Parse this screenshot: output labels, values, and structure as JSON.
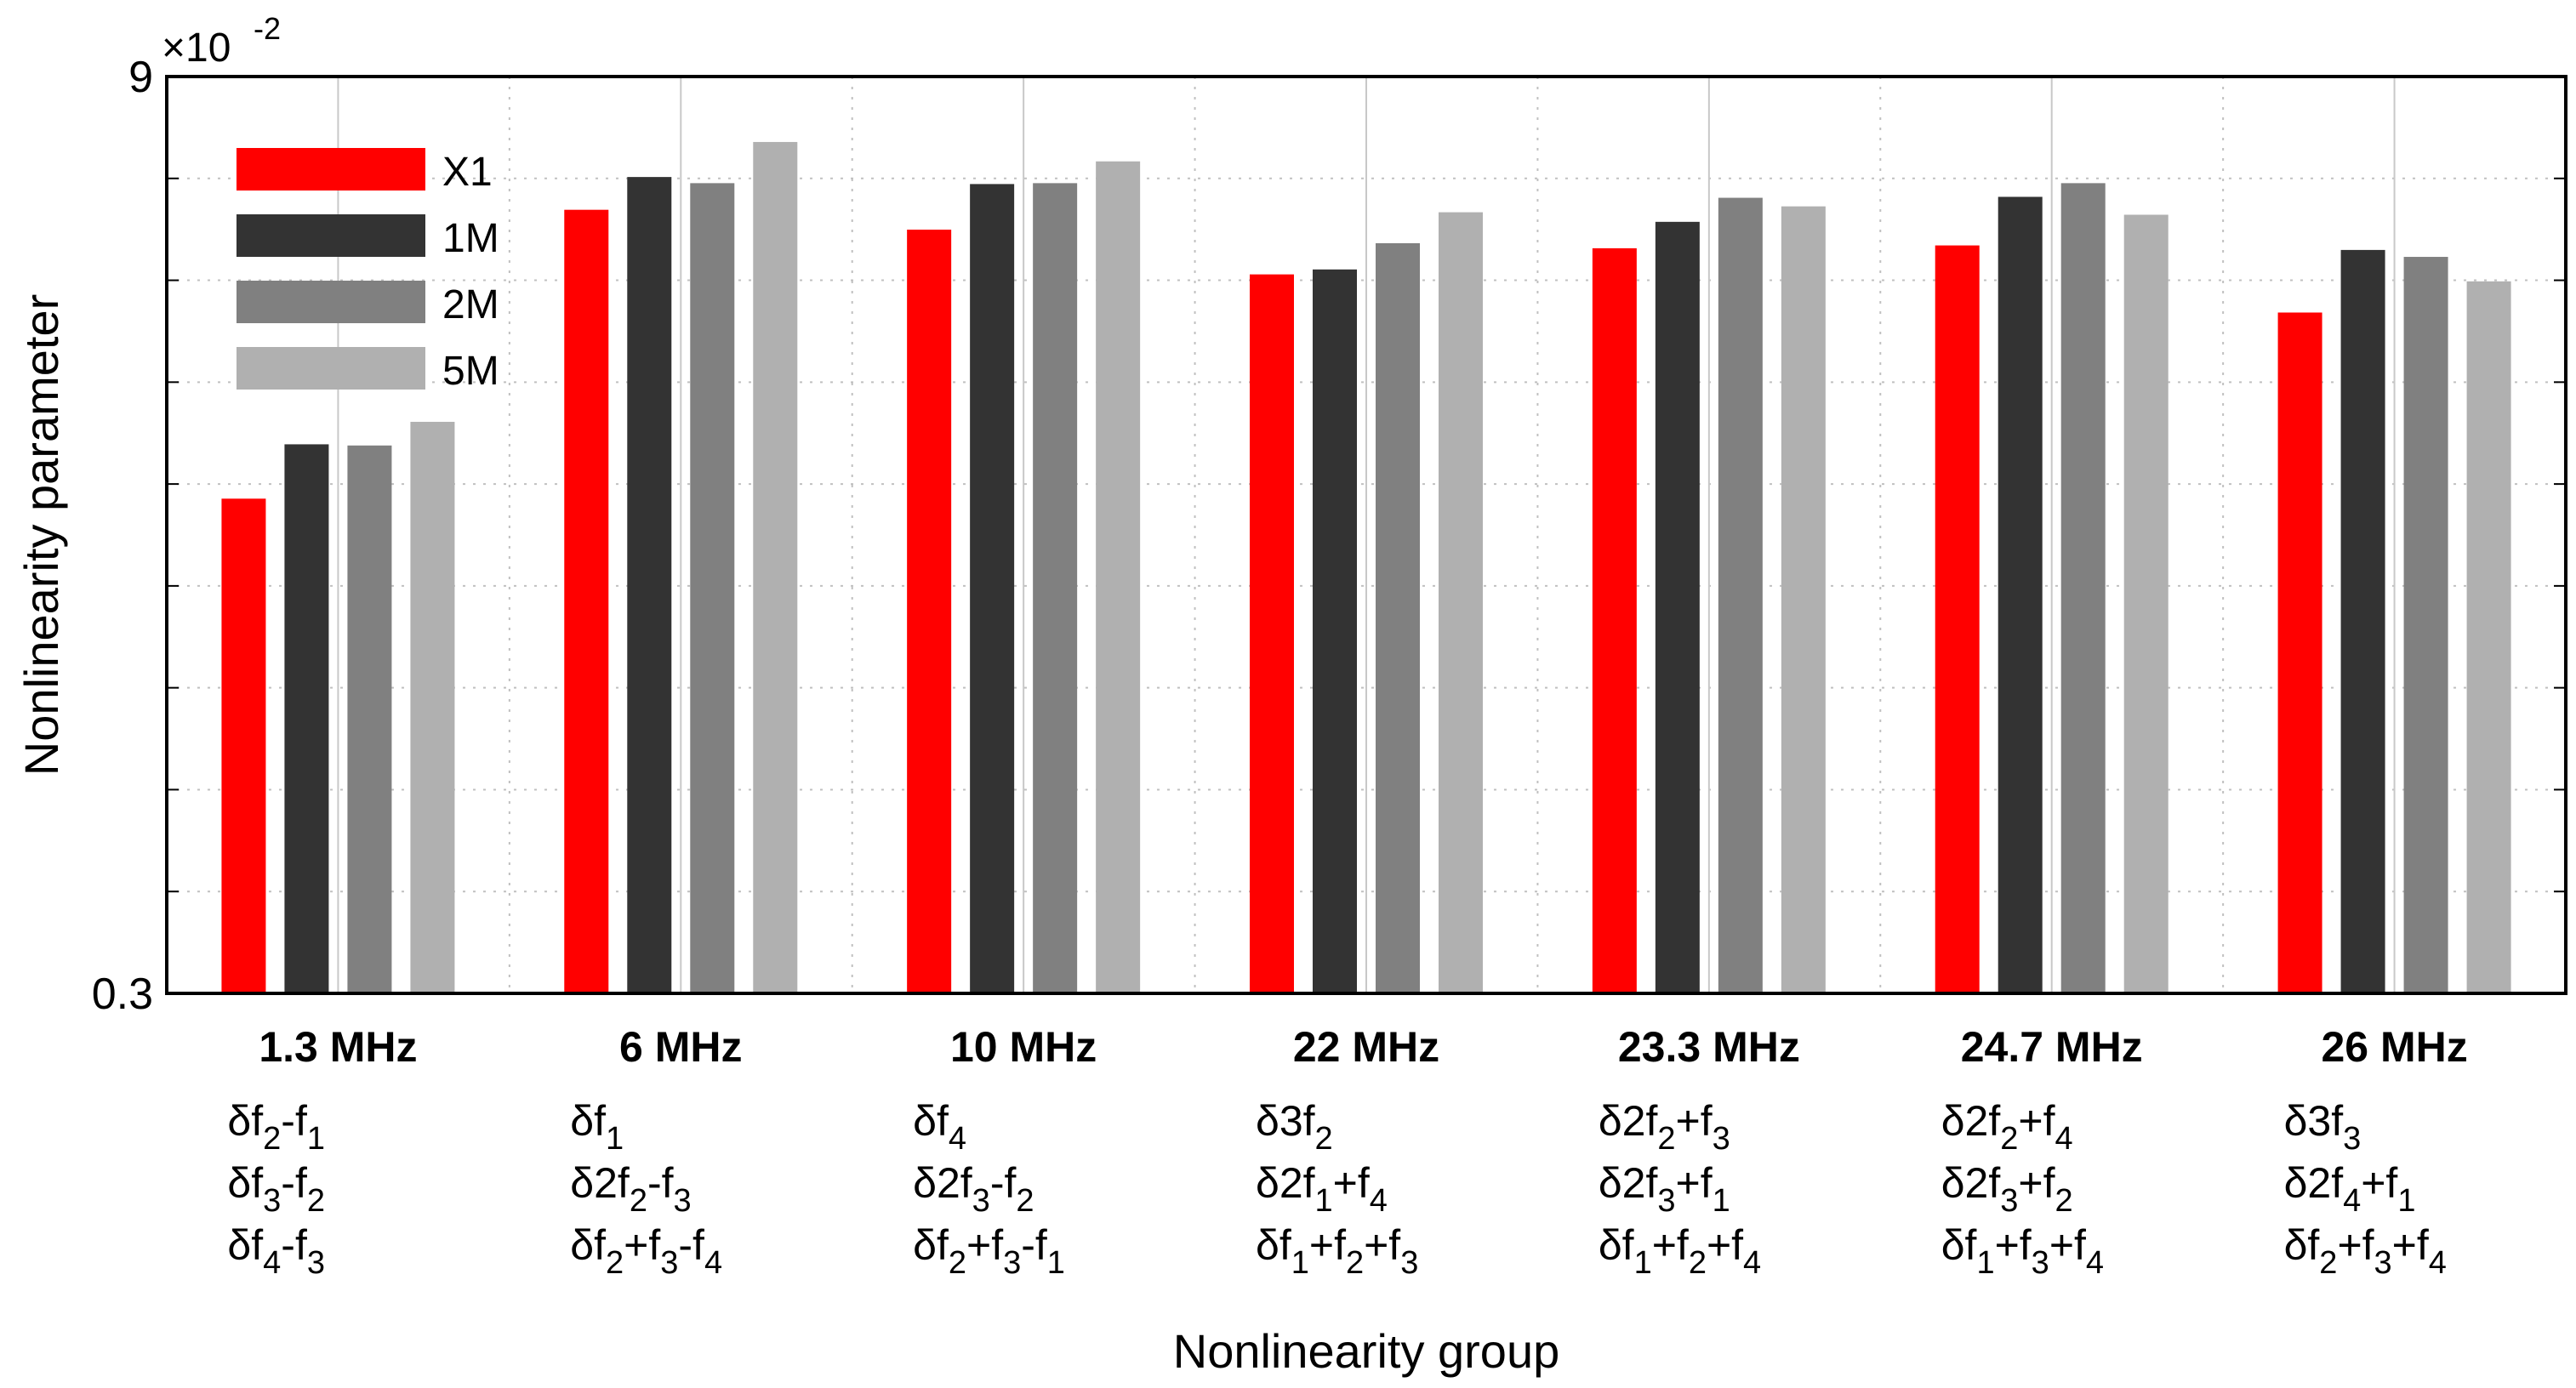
{
  "chart_data": {
    "type": "bar",
    "xlabel": "Nonlinearity group",
    "ylabel": "Nonlinearity parameter",
    "y_scale": "log",
    "ylim": [
      0.003,
      0.09
    ],
    "y_exponent_label": "×10",
    "y_exponent_power": "-2",
    "y_tick_labels": [
      "0.3",
      "9"
    ],
    "grid": true,
    "legend_position": "top-left",
    "categories": [
      "1.3 MHz",
      "6 MHz",
      "10 MHz",
      "22 MHz",
      "23.3 MHz",
      "24.7 MHz",
      "26 MHz"
    ],
    "category_components": [
      [
        "δf_{2}-f_{1}",
        "δf_{3}-f_{2}",
        "δf_{4}-f_{3}"
      ],
      [
        "δf_{1}",
        "δ2f_{2}-f_{3}",
        "δf_{2}+f_{3}-f_{4}"
      ],
      [
        "δf_{4}",
        "δ2f_{3}-f_{2}",
        "δf_{2}+f_{3}-f_{1}"
      ],
      [
        "δ3f_{2}",
        "δ2f_{1}+f_{4}",
        "δf_{1}+f_{2}+f_{3}"
      ],
      [
        "δ2f_{2}+f_{3}",
        "δ2f_{3}+f_{1}",
        "δf_{1}+f_{2}+f_{4}"
      ],
      [
        "δ2f_{2}+f_{4}",
        "δ2f_{3}+f_{2}",
        "δf_{1}+f_{3}+f_{4}"
      ],
      [
        "δ3f_{3}",
        "δ2f_{4}+f_{1}",
        "δf_{2}+f_{3}+f_{4}"
      ]
    ],
    "series": [
      {
        "name": "X1",
        "color": "#ff0000",
        "values": [
          0.0188,
          0.0549,
          0.051,
          0.0432,
          0.0476,
          0.0481,
          0.0375
        ]
      },
      {
        "name": "1M",
        "color": "#333333",
        "values": [
          0.023,
          0.062,
          0.0604,
          0.044,
          0.0525,
          0.0576,
          0.0473
        ]
      },
      {
        "name": "2M",
        "color": "#808080",
        "values": [
          0.0229,
          0.0606,
          0.0606,
          0.0485,
          0.0574,
          0.0606,
          0.0461
        ]
      },
      {
        "name": "5M",
        "color": "#b0b0b0",
        "values": [
          0.025,
          0.0706,
          0.0657,
          0.0544,
          0.0556,
          0.0539,
          0.0421
        ]
      }
    ]
  }
}
